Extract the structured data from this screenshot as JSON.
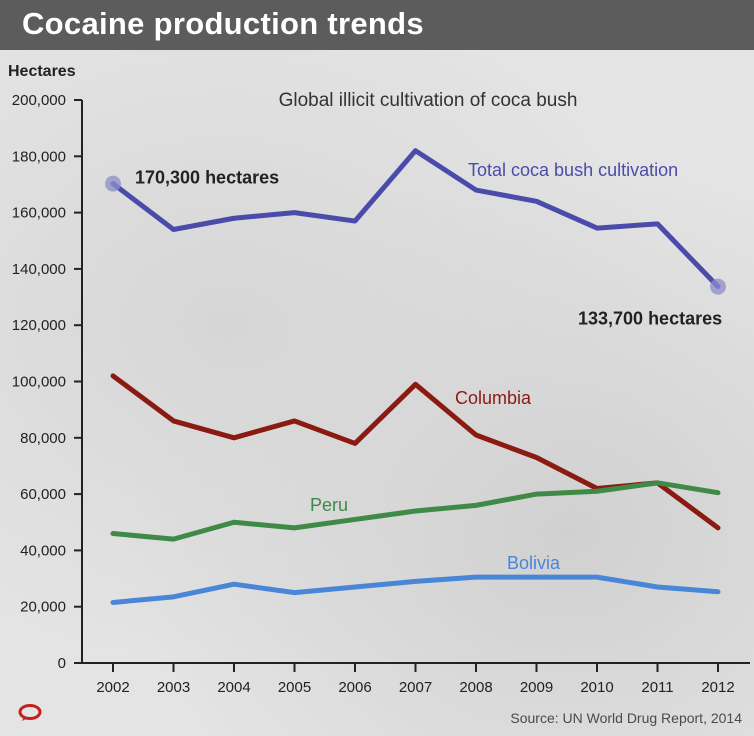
{
  "header": {
    "title": "Cocaine production trends"
  },
  "footer": {
    "source": "Source: UN World Drug Report, 2014",
    "logo_icon": "speech-bubble-logo-icon"
  },
  "chart_data": {
    "type": "line",
    "title": "Global illicit cultivation of coca bush",
    "ylabel": "Hectares",
    "xlabel": "",
    "ylim": [
      0,
      200000
    ],
    "yticks": [
      0,
      20000,
      40000,
      60000,
      80000,
      100000,
      120000,
      140000,
      160000,
      180000,
      200000
    ],
    "ytick_labels": [
      "0",
      "20,000",
      "40,000",
      "60,000",
      "80,000",
      "100,000",
      "120,000",
      "140,000",
      "160,000",
      "180,000",
      "200,000"
    ],
    "x": [
      "2002",
      "2003",
      "2004",
      "2005",
      "2006",
      "2007",
      "2008",
      "2009",
      "2010",
      "2011",
      "2012"
    ],
    "grid": false,
    "series": [
      {
        "name": "Total coca bush cultivation",
        "color": "#4b4bab",
        "values": [
          170300,
          154000,
          158000,
          160000,
          157000,
          182000,
          168000,
          164000,
          154500,
          156000,
          133700
        ]
      },
      {
        "name": "Columbia",
        "color": "#8a1a12",
        "values": [
          102000,
          86000,
          80000,
          86000,
          78000,
          99000,
          81000,
          73000,
          62000,
          64000,
          48000
        ]
      },
      {
        "name": "Peru",
        "color": "#3e8a46",
        "values": [
          46000,
          44000,
          50000,
          48000,
          51000,
          54000,
          56000,
          60000,
          61000,
          64000,
          60500
        ]
      },
      {
        "name": "Bolivia",
        "color": "#4a86d8",
        "values": [
          21500,
          23500,
          28000,
          25000,
          27000,
          29000,
          30500,
          30500,
          30500,
          27000,
          25300
        ]
      }
    ],
    "annotations": [
      {
        "text": "170,300 hectares",
        "series": 0,
        "index": 0
      },
      {
        "text": "133,700 hectares",
        "series": 0,
        "index": 10
      }
    ]
  }
}
